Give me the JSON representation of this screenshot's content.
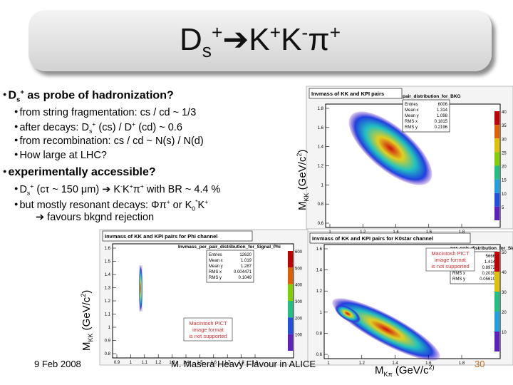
{
  "title": [
    "D",
    "s",
    "+",
    "➔",
    "K",
    "+",
    "K",
    "-",
    "π",
    "+"
  ],
  "bullets": [
    [
      "D",
      "s",
      "+",
      " as probe of hadronization?"
    ],
    [
      "from string fragmentation: cs / cd ~ 1/3"
    ],
    [
      "after decays: D",
      "s",
      "+",
      " (cs) / D",
      "+",
      " (cd) ~ 0.6"
    ],
    [
      "from recombination: cs / cd ~ N(s) / N(d)"
    ],
    [
      "How large at LHC?"
    ],
    [
      "experimentally accessible?"
    ],
    [
      "D",
      "s",
      "+",
      " (cτ ~ 150 μm) ➔ K",
      "-",
      "K",
      "+",
      "π",
      "+",
      " with BR ~ 4.4 %"
    ],
    [
      "but mostly resonant decays: Φπ",
      "+",
      " or K",
      "0",
      "*",
      "K",
      "+"
    ],
    [
      "➔ favours bkgnd rejection"
    ]
  ],
  "axis_labels": {
    "mkk_right": [
      "M",
      "KK",
      " (GeV/c",
      "2",
      ")"
    ],
    "mkk_left": [
      "M",
      "KK",
      " (GeV/c",
      "2",
      ")"
    ],
    "mkpi": [
      "M",
      "Kπ",
      " (GeV/c",
      "2)"
    ]
  },
  "plots": [
    {
      "title": "Invmass of KK and KPI pairs",
      "hist_name": "pair_distribution_for_BKG",
      "stats": [
        [
          "Entries",
          "6006"
        ],
        [
          "Mean x",
          "1.314"
        ],
        [
          "Mean y",
          "1.098"
        ],
        [
          "RMS x",
          "0.1815"
        ],
        [
          "RMS y",
          "0.2196"
        ]
      ],
      "yticks": [
        "1.8",
        "1.6",
        "1.4",
        "1.2",
        "1",
        "0.8",
        "0.6"
      ],
      "xticks": [
        "1",
        "1.2",
        "1.4",
        "1.6",
        "1.8"
      ],
      "zticks": [
        "40",
        "35",
        "30",
        "25",
        "20",
        "15",
        "10",
        "5"
      ]
    },
    {
      "title": "Invmass of KK and KPI pairs for Phi channel",
      "hist_name": "Invmass_per_pair_distribution_for_Signal_Phi",
      "stats": [
        [
          "Entries",
          "12620"
        ],
        [
          "Mean x",
          "1.019"
        ],
        [
          "Mean y",
          "1.287"
        ],
        [
          "RMS x",
          "0.004471"
        ],
        [
          "RMS y",
          "0.1049"
        ]
      ],
      "yticks": [
        "1.6",
        "1.5",
        "1.4",
        "1.3",
        "1.2",
        "1.1",
        "1",
        "0.9",
        "0.8"
      ],
      "xticks": [
        "0.9",
        "1",
        "1.1",
        "1.2",
        "1.3",
        "1.4",
        "1.5",
        "1.6",
        "1.7",
        "1.8",
        "1.9"
      ],
      "zticks": [
        "600",
        "500",
        "400",
        "300",
        "200",
        "100"
      ],
      "notice": [
        "Macintosh PICT",
        "image format",
        "is not supported"
      ]
    },
    {
      "title": "Invmass of KK and KPI pairs for K0star channel",
      "hist_name": "per_pair_distribution_for_Signal",
      "stats": [
        [
          "Entries",
          "5666"
        ],
        [
          "Mean x",
          "1.414"
        ],
        [
          "Mean y",
          "0.8972"
        ],
        [
          "RMS x",
          "0.2039"
        ],
        [
          "RMS y",
          "0.05619"
        ]
      ],
      "yticks": [
        "1.6",
        "1.4",
        "1.2",
        "1",
        "0.8",
        "0.6"
      ],
      "xticks": [
        "1",
        "1.2",
        "1.4",
        "1.6",
        "1.8"
      ],
      "zticks": [
        "50",
        "40",
        "30",
        "20",
        "10"
      ],
      "notice": [
        "Macintosh PICT",
        "image format",
        "is not supported"
      ]
    }
  ],
  "footer": {
    "date": "9 Feb 2008",
    "author": "M. Masera   Heavy Flavour in ALICE",
    "page": "30"
  }
}
